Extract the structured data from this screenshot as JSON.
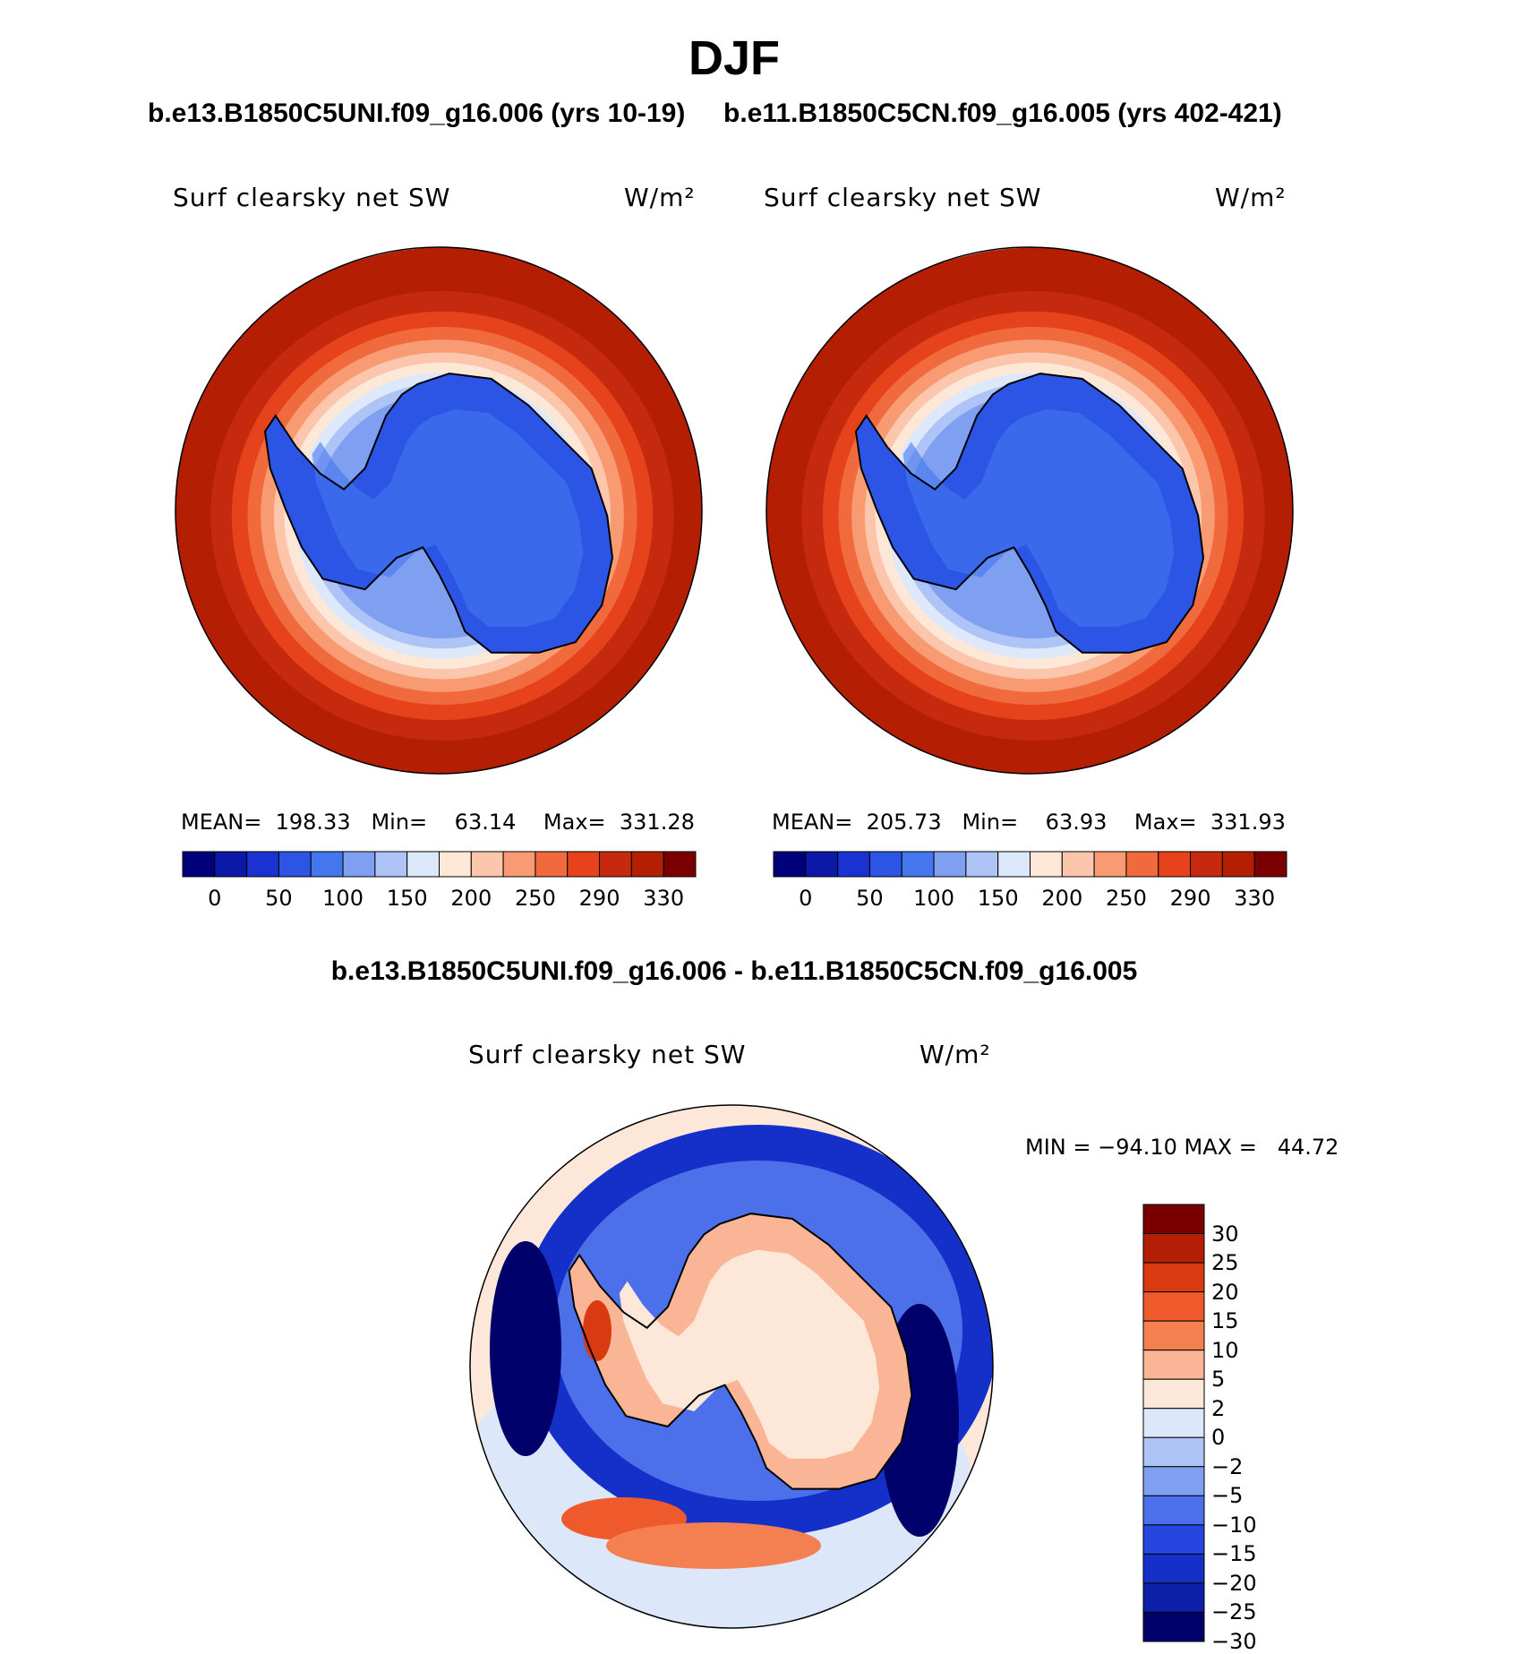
{
  "title": "DJF",
  "case_labels": {
    "left": "b.e13.B1850C5UNI.f09_g16.006 (yrs 10-19)",
    "right": "b.e11.B1850C5CN.f09_g16.005 (yrs 402-421)"
  },
  "diff_title": "b.e13.B1850C5UNI.f09_g16.006 - b.e11.B1850C5CN.f09_g16.005",
  "variable": "Surf clearsky net SW",
  "units": "W/m²",
  "colors": {
    "abs_scale": [
      "#00007a",
      "#0b18a8",
      "#1a33d0",
      "#2c55e6",
      "#4477ee",
      "#7f9ff1",
      "#afc4f6",
      "#dde8fa",
      "#fde8d8",
      "#fbc6ab",
      "#f89a72",
      "#f06a3e",
      "#e6421b",
      "#c52a0f",
      "#b41f03",
      "#7b0000"
    ],
    "diff_scale": [
      "#00006a",
      "#0d1fa6",
      "#1530c8",
      "#2746e0",
      "#4c70ea",
      "#7f9ff1",
      "#afc4f6",
      "#dce8fa",
      "#fde7d8",
      "#f9b595",
      "#f47f51",
      "#ee5a2b",
      "#d93a12",
      "#b31f05",
      "#7a0000"
    ],
    "coastline": "#000000"
  },
  "chart_data": [
    {
      "type": "heatmap",
      "projection": "south polar stereographic",
      "case": "b.e13.B1850C5UNI.f09_g16.006 (yrs 10-19)",
      "label": "Surf clearsky net SW",
      "units": "W/m²",
      "stats": {
        "mean": 198.33,
        "min": 63.14,
        "max": 331.28
      },
      "stats_text": "MEAN=  198.33   Min=    63.14    Max=  331.28",
      "colorbar_ticks": [
        "0",
        "50",
        "100",
        "150",
        "200",
        "250",
        "290",
        "330"
      ],
      "levels": [
        0,
        25,
        50,
        75,
        100,
        125,
        150,
        175,
        200,
        225,
        250,
        270,
        290,
        310,
        330
      ]
    },
    {
      "type": "heatmap",
      "projection": "south polar stereographic",
      "case": "b.e11.B1850C5CN.f09_g16.005 (yrs 402-421)",
      "label": "Surf clearsky net SW",
      "units": "W/m²",
      "stats": {
        "mean": 205.73,
        "min": 63.93,
        "max": 331.93
      },
      "stats_text": "MEAN=  205.73   Min=    63.93    Max=  331.93",
      "colorbar_ticks": [
        "0",
        "50",
        "100",
        "150",
        "200",
        "250",
        "290",
        "330"
      ],
      "levels": [
        0,
        25,
        50,
        75,
        100,
        125,
        150,
        175,
        200,
        225,
        250,
        270,
        290,
        310,
        330
      ]
    },
    {
      "type": "heatmap",
      "projection": "south polar stereographic",
      "case": "b.e13.B1850C5UNI.f09_g16.006 - b.e11.B1850C5CN.f09_g16.005",
      "label": "Surf clearsky net SW",
      "units": "W/m²",
      "stats": {
        "min": -94.1,
        "max": 44.72
      },
      "stats_text": "MIN = −94.10 MAX =   44.72",
      "colorbar_ticks": [
        "30",
        "25",
        "20",
        "15",
        "10",
        "5",
        "2",
        "0",
        "−2",
        "−5",
        "−10",
        "−15",
        "−20",
        "−25",
        "−30"
      ]
    }
  ]
}
